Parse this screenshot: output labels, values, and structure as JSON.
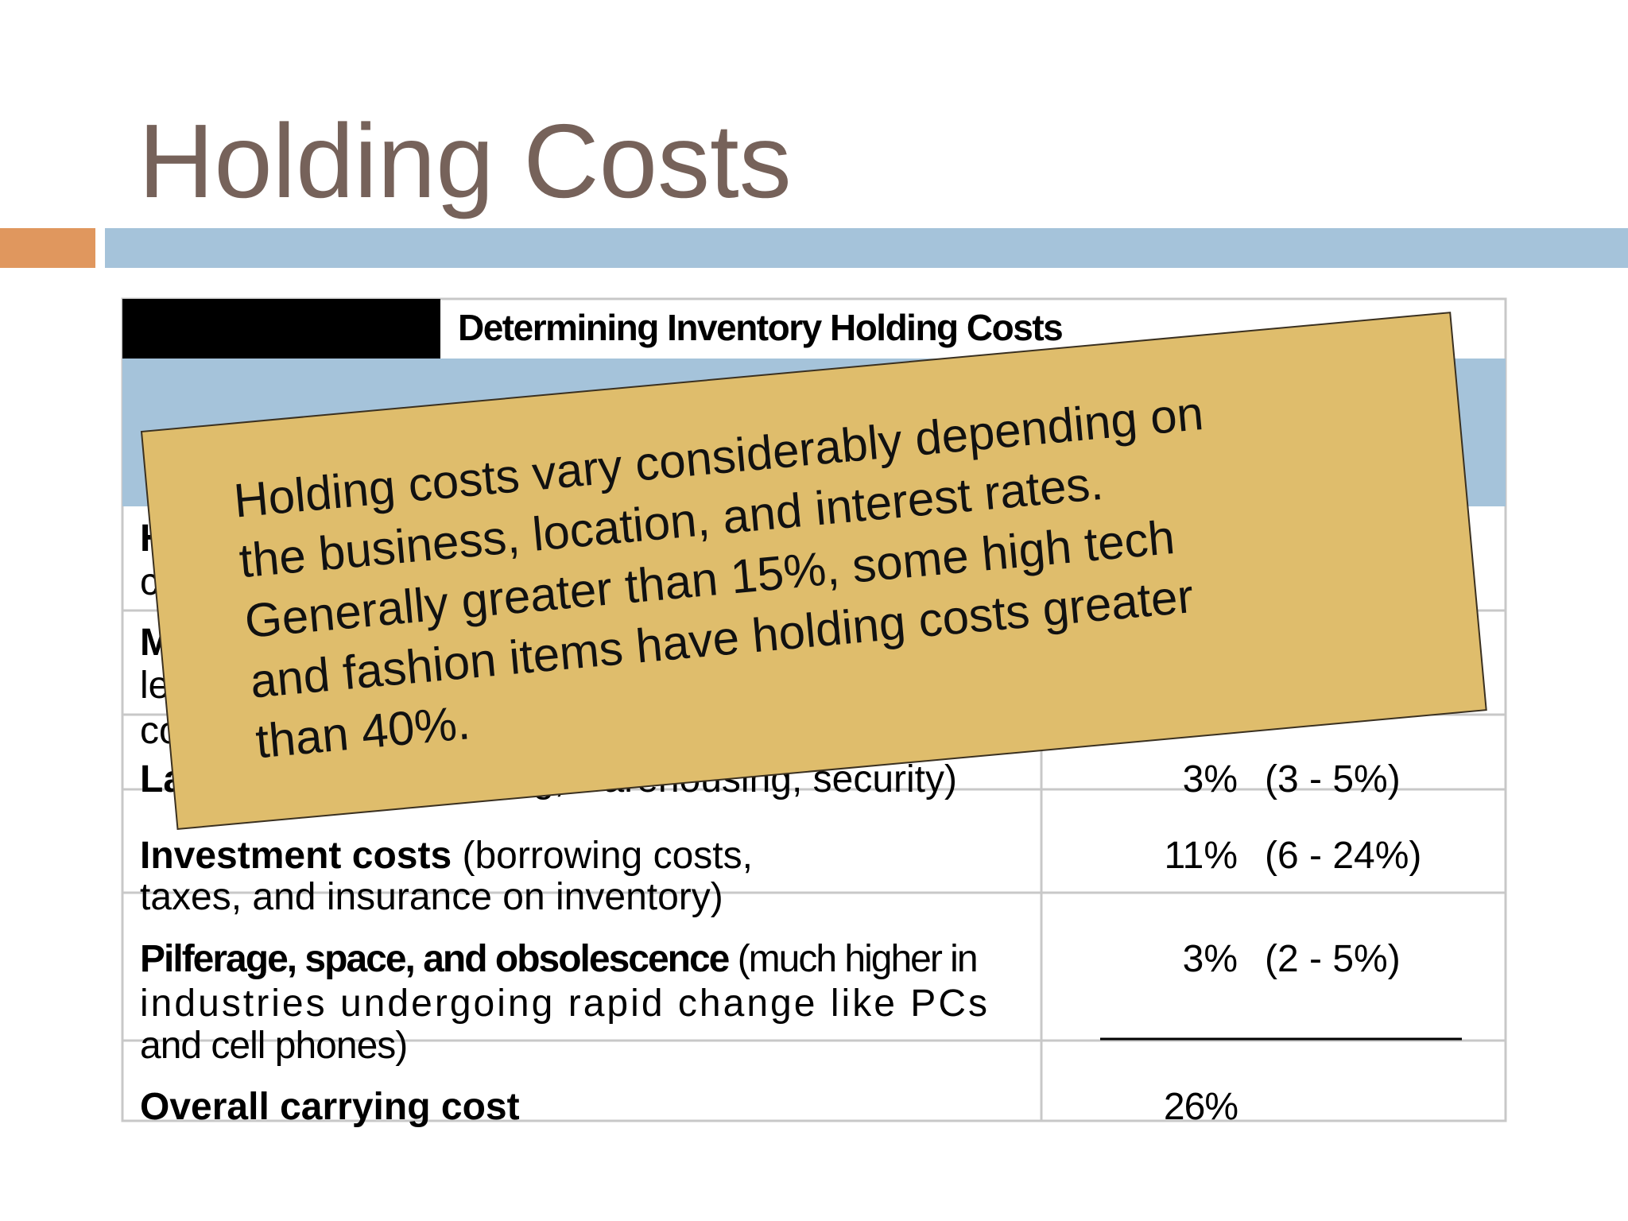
{
  "title": "Holding Costs",
  "table": {
    "title": "Determining Inventory Holding Costs",
    "hidden_fragments": [
      "H",
      "c",
      "M",
      "le",
      "co"
    ],
    "rows": [
      {
        "bold": "La",
        "tail": "g, warehousing, security)",
        "value": "3%",
        "range": "(3 - 5%)"
      },
      {
        "bold": "Investment costs",
        "lines": [
          " (borrowing costs,",
          "taxes, and  insurance on inventory)"
        ],
        "value": "11%",
        "range": "(6 - 24%)"
      },
      {
        "bold": "Pilferage, space, and obsolescence",
        "lines": [
          " (much higher in",
          "industries undergoing rapid change like PCs",
          "and cell  phones)"
        ],
        "value": "3%",
        "range": "(2 - 5%)"
      },
      {
        "bold": "Overall carrying cost",
        "value": "26%"
      }
    ]
  },
  "note": [
    "Holding costs vary considerably depending on",
    "the business, location, and interest rates.",
    "Generally greater than 15%, some high tech",
    "and fashion items have holding costs greater",
    "than 40%."
  ]
}
